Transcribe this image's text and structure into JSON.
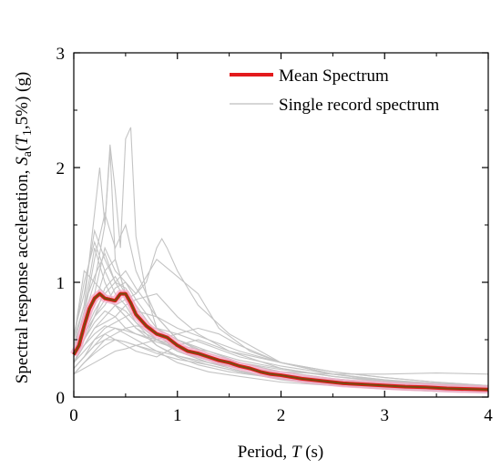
{
  "chart_data": {
    "type": "line",
    "xlabel": {
      "text": "Period, ",
      "var": "T",
      "unit": " (s)"
    },
    "ylabel": {
      "text": "Spectral response acceleration, ",
      "var": "S",
      "sub": "a",
      "open": "(",
      "var2": "T",
      "sub2": "1",
      "rest": ",5%) (g)"
    },
    "xlim": [
      0,
      4
    ],
    "ylim": [
      0,
      3
    ],
    "xticks": [
      "0",
      "1",
      "2",
      "3",
      "4"
    ],
    "yticks": [
      "0",
      "1",
      "2",
      "3"
    ],
    "grid": false,
    "legend_position": "top-right",
    "legend": [
      {
        "label": "Mean Spectrum",
        "color": "#e31a1c"
      },
      {
        "label": "Single record spectrum",
        "color": "#bdbdbd"
      }
    ],
    "colors": {
      "mean": "#e31a1c",
      "mean_dark": "#7a4a10",
      "pink_band": "#f7a8c8",
      "single": "#c4c4c4"
    },
    "mean": {
      "x": [
        0,
        0.05,
        0.1,
        0.15,
        0.2,
        0.25,
        0.3,
        0.35,
        0.4,
        0.45,
        0.5,
        0.55,
        0.6,
        0.7,
        0.8,
        0.9,
        1.0,
        1.1,
        1.2,
        1.3,
        1.4,
        1.5,
        1.6,
        1.7,
        1.8,
        1.9,
        2.0,
        2.2,
        2.4,
        2.6,
        2.8,
        3.0,
        3.2,
        3.4,
        3.6,
        3.8,
        4.0
      ],
      "y": [
        0.37,
        0.45,
        0.62,
        0.77,
        0.86,
        0.9,
        0.86,
        0.85,
        0.84,
        0.9,
        0.9,
        0.82,
        0.72,
        0.62,
        0.55,
        0.52,
        0.45,
        0.4,
        0.38,
        0.35,
        0.32,
        0.3,
        0.27,
        0.25,
        0.22,
        0.2,
        0.19,
        0.16,
        0.14,
        0.12,
        0.11,
        0.1,
        0.09,
        0.085,
        0.075,
        0.07,
        0.065
      ]
    },
    "single_records": [
      {
        "x": [
          0,
          0.1,
          0.2,
          0.3,
          0.4,
          0.5,
          0.6,
          0.8,
          1.0,
          1.3,
          1.6,
          2.0,
          2.5,
          3.0,
          3.5,
          4.0
        ],
        "y": [
          0.4,
          0.75,
          1.3,
          1.0,
          0.8,
          0.7,
          0.6,
          0.5,
          0.4,
          0.3,
          0.25,
          0.18,
          0.13,
          0.1,
          0.08,
          0.07
        ]
      },
      {
        "x": [
          0,
          0.1,
          0.2,
          0.25,
          0.3,
          0.35,
          0.4,
          0.5,
          0.6,
          0.8,
          1.0,
          1.3,
          1.6,
          2.0,
          2.5,
          3.0,
          3.5,
          4.0
        ],
        "y": [
          0.5,
          0.8,
          1.6,
          2.0,
          1.5,
          2.15,
          1.2,
          0.9,
          0.7,
          0.55,
          0.45,
          0.35,
          0.28,
          0.2,
          0.14,
          0.1,
          0.08,
          0.06
        ]
      },
      {
        "x": [
          0,
          0.1,
          0.2,
          0.3,
          0.35,
          0.4,
          0.45,
          0.5,
          0.55,
          0.6,
          0.7,
          0.8,
          1.0,
          1.3,
          1.6,
          2.0,
          2.5,
          3.0,
          3.5,
          4.0
        ],
        "y": [
          0.45,
          0.7,
          1.0,
          1.5,
          2.2,
          1.8,
          1.3,
          2.25,
          2.35,
          1.4,
          0.9,
          0.6,
          0.45,
          0.33,
          0.27,
          0.2,
          0.14,
          0.1,
          0.08,
          0.06
        ]
      },
      {
        "x": [
          0,
          0.1,
          0.2,
          0.3,
          0.4,
          0.5,
          0.6,
          0.7,
          0.8,
          0.85,
          0.9,
          1.0,
          1.2,
          1.5,
          1.8,
          2.0,
          2.5,
          3.0,
          3.5,
          4.0
        ],
        "y": [
          0.3,
          0.45,
          0.6,
          0.7,
          0.8,
          0.85,
          0.9,
          1.0,
          1.3,
          1.38,
          1.3,
          1.1,
          0.8,
          0.55,
          0.4,
          0.3,
          0.2,
          0.14,
          0.1,
          0.08
        ]
      },
      {
        "x": [
          0,
          0.1,
          0.2,
          0.3,
          0.4,
          0.5,
          0.6,
          0.8,
          1.0,
          1.2,
          1.4,
          1.7,
          2.0,
          2.5,
          3.0,
          3.5,
          4.0
        ],
        "y": [
          0.35,
          0.5,
          0.7,
          0.8,
          0.95,
          1.0,
          0.9,
          1.2,
          1.05,
          0.9,
          0.6,
          0.4,
          0.3,
          0.2,
          0.15,
          0.12,
          0.1
        ]
      },
      {
        "x": [
          0,
          0.1,
          0.2,
          0.3,
          0.4,
          0.5,
          0.6,
          0.8,
          1.0,
          1.2,
          1.5,
          2.0,
          2.5,
          3.0,
          3.5,
          4.0
        ],
        "y": [
          0.3,
          0.4,
          0.5,
          0.55,
          0.5,
          0.45,
          0.4,
          0.35,
          0.45,
          0.5,
          0.4,
          0.25,
          0.18,
          0.13,
          0.1,
          0.08
        ]
      },
      {
        "x": [
          0,
          0.1,
          0.2,
          0.3,
          0.4,
          0.5,
          0.6,
          0.8,
          1.0,
          1.2,
          1.5,
          2.0,
          2.5,
          3.0,
          3.5,
          4.0
        ],
        "y": [
          0.5,
          1.1,
          1.0,
          0.9,
          0.8,
          0.7,
          0.6,
          0.45,
          0.35,
          0.28,
          0.22,
          0.16,
          0.11,
          0.08,
          0.06,
          0.05
        ]
      },
      {
        "x": [
          0,
          0.1,
          0.2,
          0.3,
          0.4,
          0.5,
          0.6,
          0.8,
          1.0,
          1.2,
          1.4,
          1.6,
          2.0,
          2.5,
          3.0,
          3.5,
          4.0
        ],
        "y": [
          0.2,
          0.25,
          0.3,
          0.35,
          0.4,
          0.42,
          0.45,
          0.5,
          0.55,
          0.6,
          0.55,
          0.45,
          0.3,
          0.2,
          0.14,
          0.1,
          0.08
        ]
      },
      {
        "x": [
          0,
          0.1,
          0.2,
          0.3,
          0.4,
          0.5,
          0.6,
          0.8,
          1.0,
          1.3,
          1.6,
          2.0,
          2.5,
          3.0,
          3.5,
          4.0
        ],
        "y": [
          0.4,
          0.6,
          0.8,
          1.1,
          1.2,
          0.9,
          0.7,
          0.55,
          0.42,
          0.32,
          0.25,
          0.18,
          0.13,
          0.1,
          0.08,
          0.06
        ]
      },
      {
        "x": [
          0,
          0.1,
          0.2,
          0.3,
          0.4,
          0.5,
          0.6,
          0.8,
          1.0,
          1.3,
          1.6,
          2.0,
          2.5,
          3.0,
          3.5,
          4.0
        ],
        "y": [
          0.25,
          0.35,
          0.45,
          0.55,
          0.6,
          0.55,
          0.5,
          0.4,
          0.3,
          0.22,
          0.18,
          0.13,
          0.1,
          0.07,
          0.05,
          0.04
        ]
      },
      {
        "x": [
          0,
          0.1,
          0.2,
          0.3,
          0.4,
          0.5,
          0.6,
          0.7,
          0.8,
          1.0,
          1.3,
          1.6,
          2.0,
          2.5,
          3.0,
          3.5,
          4.0
        ],
        "y": [
          0.45,
          0.7,
          1.2,
          1.6,
          1.3,
          1.5,
          1.1,
          0.9,
          0.7,
          0.5,
          0.36,
          0.28,
          0.2,
          0.14,
          0.1,
          0.08,
          0.06
        ]
      },
      {
        "x": [
          0,
          0.1,
          0.2,
          0.3,
          0.4,
          0.5,
          0.6,
          0.8,
          1.0,
          1.2,
          1.5,
          2.0,
          2.5,
          3.0,
          3.5,
          4.0
        ],
        "y": [
          0.3,
          0.5,
          0.65,
          0.75,
          0.7,
          0.8,
          0.85,
          0.9,
          0.7,
          0.55,
          0.4,
          0.3,
          0.22,
          0.17,
          0.13,
          0.1
        ]
      },
      {
        "x": [
          0,
          0.1,
          0.2,
          0.3,
          0.4,
          0.5,
          0.6,
          0.8,
          1.0,
          1.3,
          1.6,
          2.0,
          2.5,
          3.0,
          3.5,
          4.0
        ],
        "y": [
          0.55,
          0.9,
          1.45,
          1.2,
          1.0,
          0.95,
          0.8,
          0.55,
          0.4,
          0.3,
          0.23,
          0.16,
          0.11,
          0.08,
          0.06,
          0.05
        ]
      },
      {
        "x": [
          0,
          0.1,
          0.2,
          0.3,
          0.4,
          0.5,
          0.6,
          0.8,
          1.0,
          1.3,
          1.6,
          2.0,
          2.5,
          3.0,
          3.5,
          4.0
        ],
        "y": [
          0.35,
          0.55,
          0.7,
          0.95,
          1.05,
          0.9,
          0.7,
          0.5,
          0.42,
          0.33,
          0.26,
          0.2,
          0.15,
          0.11,
          0.09,
          0.07
        ]
      },
      {
        "x": [
          0,
          0.1,
          0.2,
          0.3,
          0.4,
          0.5,
          0.6,
          0.8,
          1.0,
          1.3,
          1.6,
          2.0,
          2.5,
          3.0,
          3.5,
          4.0
        ],
        "y": [
          0.2,
          0.3,
          0.38,
          0.45,
          0.5,
          0.48,
          0.45,
          0.38,
          0.33,
          0.28,
          0.22,
          0.17,
          0.13,
          0.1,
          0.07,
          0.06
        ]
      },
      {
        "x": [
          0,
          0.1,
          0.2,
          0.3,
          0.4,
          0.5,
          0.6,
          0.8,
          1.0,
          1.3,
          1.6,
          2.0,
          2.5,
          3.0,
          3.5,
          4.0
        ],
        "y": [
          0.4,
          0.65,
          0.9,
          1.3,
          1.1,
          1.0,
          0.85,
          0.6,
          0.5,
          0.4,
          0.3,
          0.22,
          0.16,
          0.12,
          0.09,
          0.07
        ]
      },
      {
        "x": [
          0,
          0.1,
          0.2,
          0.3,
          0.4,
          0.5,
          0.6,
          0.8,
          1.0,
          1.3,
          1.6,
          2.0,
          2.5,
          3.0,
          3.5,
          4.0
        ],
        "y": [
          0.3,
          0.45,
          0.6,
          0.65,
          0.7,
          0.6,
          0.55,
          0.5,
          0.45,
          0.4,
          0.32,
          0.25,
          0.18,
          0.14,
          0.12,
          0.1
        ]
      },
      {
        "x": [
          0,
          0.1,
          0.2,
          0.3,
          0.4,
          0.5,
          0.6,
          0.8,
          1.0,
          1.3,
          1.6,
          2.0,
          2.5,
          3.0,
          3.5,
          4.0
        ],
        "y": [
          0.5,
          1.0,
          1.35,
          1.1,
          0.9,
          0.8,
          0.65,
          0.45,
          0.36,
          0.28,
          0.22,
          0.15,
          0.1,
          0.07,
          0.05,
          0.04
        ]
      },
      {
        "x": [
          0,
          0.1,
          0.2,
          0.3,
          0.4,
          0.5,
          0.6,
          0.8,
          1.0,
          1.3,
          1.6,
          2.0,
          2.5,
          3.0,
          3.5,
          4.0
        ],
        "y": [
          0.25,
          0.35,
          0.5,
          0.6,
          0.65,
          0.7,
          0.75,
          0.7,
          0.6,
          0.5,
          0.4,
          0.3,
          0.22,
          0.17,
          0.13,
          0.1
        ]
      },
      {
        "x": [
          0,
          0.1,
          0.2,
          0.3,
          0.4,
          0.5,
          0.6,
          0.8,
          1.0,
          1.3,
          1.6,
          2.0,
          2.5,
          3.0,
          3.5,
          4.0
        ],
        "y": [
          0.45,
          0.8,
          1.05,
          1.25,
          1.0,
          0.85,
          0.7,
          0.55,
          0.45,
          0.34,
          0.26,
          0.19,
          0.14,
          0.1,
          0.08,
          0.06
        ]
      },
      {
        "x": [
          0,
          0.1,
          0.2,
          0.3,
          0.4,
          0.5,
          0.6,
          0.8,
          1.0,
          1.3,
          1.6,
          2.0,
          2.5,
          3.0,
          3.5,
          4.0
        ],
        "y": [
          0.3,
          0.5,
          0.7,
          0.85,
          0.8,
          0.75,
          0.65,
          0.5,
          0.4,
          0.32,
          0.25,
          0.18,
          0.13,
          0.09,
          0.07,
          0.06
        ]
      },
      {
        "x": [
          0,
          0.1,
          0.2,
          0.3,
          0.4,
          0.5,
          0.6,
          0.8,
          1.0,
          1.3,
          1.6,
          2.0,
          2.5,
          3.0,
          3.5,
          4.0
        ],
        "y": [
          0.35,
          0.55,
          0.75,
          0.9,
          1.0,
          1.1,
          0.95,
          0.7,
          0.5,
          0.38,
          0.3,
          0.22,
          0.16,
          0.12,
          0.09,
          0.07
        ]
      },
      {
        "x": [
          0,
          0.1,
          0.2,
          0.3,
          0.4,
          0.5,
          0.6,
          0.8,
          1.0,
          1.3,
          1.6,
          2.0,
          2.5,
          3.0,
          3.5,
          4.0
        ],
        "y": [
          0.2,
          0.3,
          0.4,
          0.5,
          0.55,
          0.6,
          0.62,
          0.6,
          0.55,
          0.45,
          0.35,
          0.27,
          0.2,
          0.15,
          0.11,
          0.09
        ]
      },
      {
        "x": [
          0,
          0.1,
          0.2,
          0.3,
          0.4,
          0.5,
          0.6,
          0.8,
          1.0,
          1.3,
          1.6,
          2.0,
          2.5,
          3.0,
          3.5,
          4.0
        ],
        "y": [
          0.25,
          0.35,
          0.45,
          0.5,
          0.5,
          0.48,
          0.45,
          0.4,
          0.36,
          0.3,
          0.26,
          0.22,
          0.2,
          0.2,
          0.21,
          0.2
        ]
      },
      {
        "x": [
          0,
          0.1,
          0.2,
          0.3,
          0.4,
          0.5,
          0.6,
          0.8,
          1.0,
          1.3,
          1.6,
          2.0,
          2.5,
          3.0,
          3.5,
          4.0
        ],
        "y": [
          0.3,
          0.45,
          0.55,
          0.62,
          0.6,
          0.58,
          0.55,
          0.48,
          0.42,
          0.35,
          0.3,
          0.24,
          0.18,
          0.14,
          0.11,
          0.08
        ]
      }
    ]
  }
}
